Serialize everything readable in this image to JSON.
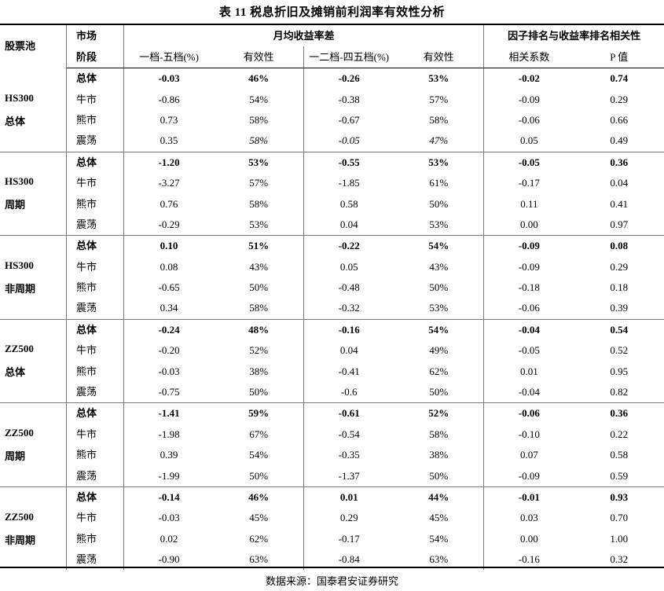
{
  "title": "表 11  税息折旧及摊销前利润率有效性分析",
  "header": {
    "pool": "股票池",
    "market_line1": "市场",
    "market_line2": "阶段",
    "group_return": "月均收益率差",
    "group_corr": "因子排名与收益率排名相关性",
    "col1": "一档-五档(%)",
    "col2": "有效性",
    "col3": "一二档-四五档(%)",
    "col4": "有效性",
    "col5": "相关系数",
    "col6": "P 值"
  },
  "groups": [
    {
      "pool_line1": "HS300",
      "pool_line2": "总体",
      "rows": [
        {
          "phase": "总体",
          "v1": "-0.03",
          "v2": "46%",
          "v3": "-0.26",
          "v4": "53%",
          "v5": "-0.02",
          "v6": "0.74"
        },
        {
          "phase": "牛市",
          "v1": "-0.86",
          "v2": "54%",
          "v3": "-0.38",
          "v4": "57%",
          "v5": "-0.09",
          "v6": "0.29"
        },
        {
          "phase": "熊市",
          "v1": "0.73",
          "v2": "58%",
          "v3": "-0.67",
          "v4": "58%",
          "v5": "-0.06",
          "v6": "0.66"
        },
        {
          "phase": "震荡",
          "v1": "0.35",
          "v2": "58%",
          "v3": "-0.05",
          "v4": "47%",
          "v5": "0.05",
          "v6": "0.49"
        }
      ]
    },
    {
      "pool_line1": "HS300",
      "pool_line2": "周期",
      "rows": [
        {
          "phase": "总体",
          "v1": "-1.20",
          "v2": "53%",
          "v3": "-0.55",
          "v4": "53%",
          "v5": "-0.05",
          "v6": "0.36"
        },
        {
          "phase": "牛市",
          "v1": "-3.27",
          "v2": "57%",
          "v3": "-1.85",
          "v4": "61%",
          "v5": "-0.17",
          "v6": "0.04"
        },
        {
          "phase": "熊市",
          "v1": "0.76",
          "v2": "58%",
          "v3": "0.58",
          "v4": "50%",
          "v5": "0.11",
          "v6": "0.41"
        },
        {
          "phase": "震荡",
          "v1": "-0.29",
          "v2": "53%",
          "v3": "0.04",
          "v4": "53%",
          "v5": "0.00",
          "v6": "0.97"
        }
      ]
    },
    {
      "pool_line1": "HS300",
      "pool_line2": "非周期",
      "rows": [
        {
          "phase": "总体",
          "v1": "0.10",
          "v2": "51%",
          "v3": "-0.22",
          "v4": "54%",
          "v5": "-0.09",
          "v6": "0.08"
        },
        {
          "phase": "牛市",
          "v1": "0.08",
          "v2": "43%",
          "v3": "0.05",
          "v4": "43%",
          "v5": "-0.09",
          "v6": "0.29"
        },
        {
          "phase": "熊市",
          "v1": "-0.65",
          "v2": "50%",
          "v3": "-0.48",
          "v4": "50%",
          "v5": "-0.18",
          "v6": "0.18"
        },
        {
          "phase": "震荡",
          "v1": "0.34",
          "v2": "58%",
          "v3": "-0.32",
          "v4": "53%",
          "v5": "-0.06",
          "v6": "0.39"
        }
      ]
    },
    {
      "pool_line1": "ZZ500",
      "pool_line2": "总体",
      "rows": [
        {
          "phase": "总体",
          "v1": "-0.24",
          "v2": "48%",
          "v3": "-0.16",
          "v4": "54%",
          "v5": "-0.04",
          "v6": "0.54"
        },
        {
          "phase": "牛市",
          "v1": "-0.20",
          "v2": "52%",
          "v3": "0.04",
          "v4": "49%",
          "v5": "-0.05",
          "v6": "0.52"
        },
        {
          "phase": "熊市",
          "v1": "-0.03",
          "v2": "38%",
          "v3": "-0.41",
          "v4": "62%",
          "v5": "0.01",
          "v6": "0.95"
        },
        {
          "phase": "震荡",
          "v1": "-0.75",
          "v2": "50%",
          "v3": "-0.6",
          "v4": "50%",
          "v5": "-0.04",
          "v6": "0.82"
        }
      ]
    },
    {
      "pool_line1": "ZZ500",
      "pool_line2": "周期",
      "rows": [
        {
          "phase": "总体",
          "v1": "-1.41",
          "v2": "59%",
          "v3": "-0.61",
          "v4": "52%",
          "v5": "-0.06",
          "v6": "0.36"
        },
        {
          "phase": "牛市",
          "v1": "-1.98",
          "v2": "67%",
          "v3": "-0.54",
          "v4": "58%",
          "v5": "-0.10",
          "v6": "0.22"
        },
        {
          "phase": "熊市",
          "v1": "0.39",
          "v2": "54%",
          "v3": "-0.35",
          "v4": "38%",
          "v5": "0.07",
          "v6": "0.58"
        },
        {
          "phase": "震荡",
          "v1": "-1.99",
          "v2": "50%",
          "v3": "-1.37",
          "v4": "50%",
          "v5": "-0.09",
          "v6": "0.59"
        }
      ]
    },
    {
      "pool_line1": "ZZ500",
      "pool_line2": "非周期",
      "rows": [
        {
          "phase": "总体",
          "v1": "-0.14",
          "v2": "46%",
          "v3": "0.01",
          "v4": "44%",
          "v5": "-0.01",
          "v6": "0.93"
        },
        {
          "phase": "牛市",
          "v1": "-0.03",
          "v2": "45%",
          "v3": "0.29",
          "v4": "45%",
          "v5": "0.03",
          "v6": "0.70"
        },
        {
          "phase": "熊市",
          "v1": "0.02",
          "v2": "62%",
          "v3": "-0.17",
          "v4": "54%",
          "v5": "0.00",
          "v6": "1.00"
        },
        {
          "phase": "震荡",
          "v1": "-0.90",
          "v2": "63%",
          "v3": "-0.84",
          "v4": "63%",
          "v5": "-0.16",
          "v6": "0.32"
        }
      ]
    }
  ],
  "source": "数据来源：国泰君安证券研究"
}
